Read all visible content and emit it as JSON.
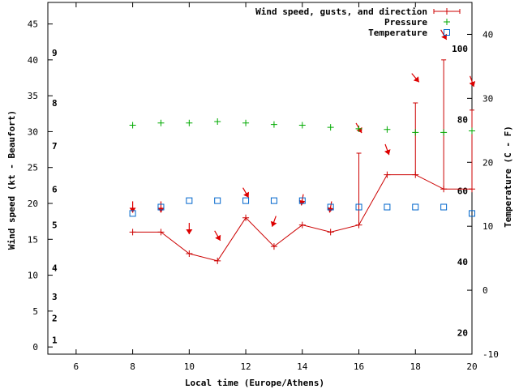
{
  "chart_data": {
    "type": "line",
    "xlabel": "Local time (Europe/Athens)",
    "ylabel_left": "Wind speed (kt - Beaufort)",
    "ylabel_right": "Temperature (C - F)",
    "xlim": [
      5,
      20
    ],
    "ylim_left": [
      -1,
      48
    ],
    "ylim_right": [
      -10,
      45
    ],
    "x_ticks": [
      6,
      8,
      10,
      12,
      14,
      16,
      18,
      20
    ],
    "y_left_ticks": [
      0,
      5,
      10,
      15,
      20,
      25,
      30,
      35,
      40,
      45
    ],
    "y_right_ticks_c": [
      -10,
      0,
      10,
      20,
      30,
      40
    ],
    "beaufort_labels": [
      {
        "label": "1",
        "kt": 1
      },
      {
        "label": "2",
        "kt": 4
      },
      {
        "label": "3",
        "kt": 7
      },
      {
        "label": "4",
        "kt": 11
      },
      {
        "label": "5",
        "kt": 17
      },
      {
        "label": "6",
        "kt": 22
      },
      {
        "label": "7",
        "kt": 28
      },
      {
        "label": "8",
        "kt": 34
      },
      {
        "label": "9",
        "kt": 41
      }
    ],
    "fahrenheit_labels": [
      {
        "label": "20",
        "f": 20
      },
      {
        "label": "40",
        "f": 40
      },
      {
        "label": "60",
        "f": 60
      },
      {
        "label": "80",
        "f": 80
      },
      {
        "label": "100",
        "f": 100
      }
    ],
    "legend": [
      {
        "name": "Wind speed, gusts, and direction",
        "color": "#cc0000",
        "symbol": "+"
      },
      {
        "name": "Pressure",
        "color": "#00aa00",
        "symbol": "+"
      },
      {
        "name": "Temperature",
        "color": "#0066cc",
        "symbol": "square"
      }
    ],
    "series": [
      {
        "name": "Wind speed",
        "color": "#cc0000",
        "x": [
          8,
          9,
          10,
          11,
          12,
          13,
          14,
          15,
          16,
          17,
          18,
          19,
          20
        ],
        "values": [
          16,
          16,
          13,
          12,
          18,
          14,
          17,
          16,
          17,
          24,
          24,
          22,
          22
        ]
      },
      {
        "name": "Gusts",
        "color": "#cc0000",
        "x": [
          16,
          18,
          19,
          20
        ],
        "values": [
          27,
          34,
          40,
          33
        ]
      },
      {
        "name": "Wind direction arrows",
        "color": "#dd0000",
        "x": [
          8,
          9,
          10,
          11,
          12,
          13,
          14,
          15,
          16,
          17,
          18,
          19,
          20
        ],
        "values": [
          19.5,
          19.5,
          16.5,
          15.5,
          21.5,
          17.5,
          20.5,
          19.5,
          30.5,
          27.5,
          37.5,
          43.5,
          37
        ],
        "direction_deg": [
          0,
          0,
          0,
          330,
          330,
          20,
          10,
          10,
          330,
          340,
          320,
          330,
          340
        ]
      },
      {
        "name": "Pressure",
        "color": "#00aa00",
        "x": [
          8,
          9,
          10,
          11,
          12,
          13,
          14,
          15,
          16,
          17,
          18,
          19,
          20
        ],
        "values": [
          30.9,
          31.2,
          31.2,
          31.4,
          31.2,
          31.0,
          30.9,
          30.6,
          30.4,
          30.3,
          29.9,
          29.9,
          30.1
        ]
      },
      {
        "name": "Temperature",
        "color": "#0066cc",
        "x": [
          8,
          9,
          10,
          11,
          12,
          13,
          14,
          15,
          16,
          17,
          18,
          19,
          20
        ],
        "values": [
          12,
          13,
          14,
          14,
          14,
          14,
          14,
          13,
          13,
          13,
          13,
          13,
          12
        ]
      }
    ]
  }
}
